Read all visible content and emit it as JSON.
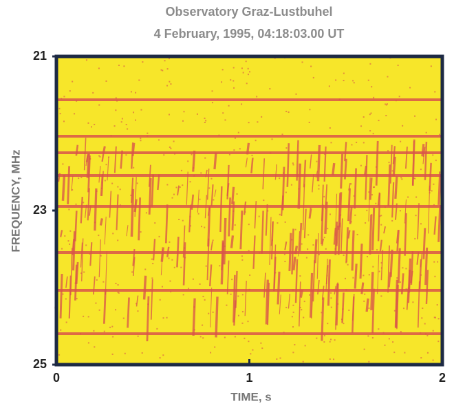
{
  "chart_data": {
    "type": "spectrogram",
    "title": "Observatory Graz-Lustbuhel",
    "subtitle": "4 February, 1995,  04:18:03.00 UT",
    "x_label": "TIME, s",
    "y_label": "FREQUENCY, MHz",
    "xlim": [
      0,
      2
    ],
    "xticks": [
      0,
      1,
      2
    ],
    "ylim": [
      21,
      25
    ],
    "yticks": [
      21,
      23,
      25
    ],
    "y_inverted": true,
    "background_color": "#f7e62a",
    "emission_color": "#d9534a"
  }
}
